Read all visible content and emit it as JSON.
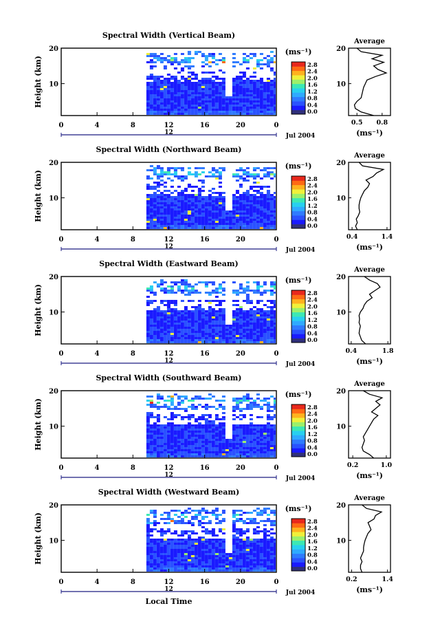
{
  "figure": {
    "bottom_xlabel": "Local Time",
    "date_label": "Jul 2004"
  },
  "colors": {
    "background": "#ffffff",
    "colormap": [
      "#30307a",
      "#1a1aff",
      "#2a52ff",
      "#2f7bff",
      "#2faaff",
      "#28d0ef",
      "#3ce8b4",
      "#9cf06a",
      "#f0f03a",
      "#ffb21e",
      "#ff6a14",
      "#e8281c"
    ]
  },
  "chart_data": [
    {
      "type": "heatmap",
      "title": "Spectral Width (Vertical Beam)",
      "ylabel": "Height (km)",
      "x_ticks": [
        "0",
        "4",
        "8",
        "12",
        "16",
        "20",
        "0"
      ],
      "x_secondary_label": "12",
      "y_ticks": [
        "20",
        "10"
      ],
      "xlim": [
        0,
        24
      ],
      "ylim": [
        1,
        20
      ],
      "data_start_hour": 9.5,
      "gap_hour": 18.6,
      "colorbar": {
        "unit": "(ms⁻¹)",
        "ticks": [
          "2.8",
          "2.4",
          "2.0",
          "1.6",
          "1.2",
          "0.8",
          "0.4",
          "0.0"
        ],
        "range": [
          0,
          3
        ]
      },
      "profile": {
        "title": "Average",
        "xlabel": "(ms⁻¹)",
        "x_ticks": [
          "0.5",
          "0.8"
        ],
        "xlim": [
          0.4,
          0.9
        ],
        "y_ticks": [
          "20",
          "10"
        ],
        "heights": [
          1,
          2,
          3,
          4,
          5,
          6,
          7,
          8,
          9,
          10,
          11,
          12,
          13,
          14,
          15,
          16,
          17,
          18,
          19,
          20
        ],
        "values": [
          0.7,
          0.55,
          0.48,
          0.47,
          0.5,
          0.55,
          0.56,
          0.57,
          0.58,
          0.6,
          0.62,
          0.72,
          0.85,
          0.75,
          0.7,
          0.82,
          0.68,
          0.8,
          0.55,
          0.5
        ]
      }
    },
    {
      "type": "heatmap",
      "title": "Spectral Width (Northward Beam)",
      "ylabel": "Height (km)",
      "x_ticks": [
        "0",
        "4",
        "8",
        "12",
        "16",
        "20",
        "0"
      ],
      "x_secondary_label": "12",
      "y_ticks": [
        "20",
        "10"
      ],
      "xlim": [
        0,
        24
      ],
      "ylim": [
        1,
        20
      ],
      "data_start_hour": 9.5,
      "gap_hour": 18.6,
      "colorbar": {
        "unit": "(ms⁻¹)",
        "ticks": [
          "2.8",
          "2.4",
          "2.0",
          "1.6",
          "1.2",
          "0.8",
          "0.4",
          "0.0"
        ],
        "range": [
          0,
          3
        ]
      },
      "profile": {
        "title": "Average",
        "xlabel": "(ms⁻¹)",
        "x_ticks": [
          "0.4",
          "1.4"
        ],
        "xlim": [
          0.3,
          1.5
        ],
        "y_ticks": [
          "20",
          "10"
        ],
        "heights": [
          1,
          2,
          3,
          4,
          5,
          6,
          7,
          8,
          9,
          10,
          11,
          12,
          13,
          14,
          15,
          16,
          17,
          18,
          19,
          20
        ],
        "values": [
          0.55,
          0.5,
          0.55,
          0.52,
          0.58,
          0.62,
          0.6,
          0.6,
          0.62,
          0.65,
          0.7,
          0.75,
          0.85,
          0.9,
          0.8,
          1.0,
          1.1,
          1.3,
          0.7,
          0.6
        ]
      }
    },
    {
      "type": "heatmap",
      "title": "Spectral Width (Eastward Beam)",
      "ylabel": "Height (km)",
      "x_ticks": [
        "0",
        "4",
        "8",
        "12",
        "16",
        "20",
        "0"
      ],
      "x_secondary_label": "12",
      "y_ticks": [
        "20",
        "10"
      ],
      "xlim": [
        0,
        24
      ],
      "ylim": [
        1,
        20
      ],
      "data_start_hour": 9.5,
      "gap_hour": 18.6,
      "colorbar": {
        "unit": "(ms⁻¹)",
        "ticks": [
          "2.8",
          "2.4",
          "2.0",
          "1.6",
          "1.2",
          "0.8",
          "0.4",
          "0.0"
        ],
        "range": [
          0,
          3
        ]
      },
      "profile": {
        "title": "Average",
        "xlabel": "(ms⁻¹)",
        "x_ticks": [
          "0.4",
          "1.8"
        ],
        "xlim": [
          0.3,
          1.9
        ],
        "y_ticks": [
          "20",
          "10"
        ],
        "heights": [
          1,
          2,
          3,
          4,
          5,
          6,
          7,
          8,
          9,
          10,
          11,
          12,
          13,
          14,
          15,
          16,
          17,
          18,
          19,
          20
        ],
        "values": [
          0.95,
          0.8,
          0.75,
          0.7,
          0.72,
          0.75,
          0.7,
          0.72,
          0.7,
          0.75,
          0.85,
          0.9,
          1.0,
          1.2,
          1.1,
          1.3,
          1.5,
          1.4,
          1.1,
          0.9
        ]
      }
    },
    {
      "type": "heatmap",
      "title": "Spectral Width (Southward Beam)",
      "ylabel": "Height (km)",
      "x_ticks": [
        "0",
        "4",
        "8",
        "12",
        "16",
        "20",
        "0"
      ],
      "x_secondary_label": "12",
      "y_ticks": [
        "20",
        "10"
      ],
      "xlim": [
        0,
        24
      ],
      "ylim": [
        1,
        20
      ],
      "data_start_hour": 9.5,
      "gap_hour": 18.6,
      "colorbar": {
        "unit": "(ms⁻¹)",
        "ticks": [
          "2.8",
          "2.4",
          "2.0",
          "1.6",
          "1.2",
          "0.8",
          "0.4",
          "0.0"
        ],
        "range": [
          0,
          3
        ]
      },
      "profile": {
        "title": "Average",
        "xlabel": "(ms⁻¹)",
        "x_ticks": [
          "0.2",
          "1.0"
        ],
        "xlim": [
          0.1,
          1.1
        ],
        "y_ticks": [
          "20",
          "10"
        ],
        "heights": [
          1,
          2,
          3,
          4,
          5,
          6,
          7,
          8,
          9,
          10,
          11,
          12,
          13,
          14,
          15,
          16,
          17,
          18,
          19,
          20
        ],
        "values": [
          0.7,
          0.6,
          0.45,
          0.42,
          0.45,
          0.48,
          0.45,
          0.5,
          0.55,
          0.6,
          0.65,
          0.7,
          0.8,
          0.65,
          0.75,
          0.85,
          0.75,
          0.9,
          0.6,
          0.45
        ]
      }
    },
    {
      "type": "heatmap",
      "title": "Spectral Width (Westward Beam)",
      "ylabel": "Height (km)",
      "x_ticks": [
        "0",
        "4",
        "8",
        "12",
        "16",
        "20",
        "0"
      ],
      "x_secondary_label": "12",
      "y_ticks": [
        "20",
        "10"
      ],
      "xlim": [
        0,
        24
      ],
      "ylim": [
        1,
        20
      ],
      "data_start_hour": 9.5,
      "gap_hour": 18.6,
      "colorbar": {
        "unit": "(ms⁻¹)",
        "ticks": [
          "2.8",
          "2.4",
          "2.0",
          "1.6",
          "1.2",
          "0.8",
          "0.4",
          "0.0"
        ],
        "range": [
          0,
          3
        ]
      },
      "profile": {
        "title": "Average",
        "xlabel": "(ms⁻¹)",
        "x_ticks": [
          "0.2",
          "1.4"
        ],
        "xlim": [
          0.1,
          1.5
        ],
        "y_ticks": [
          "20",
          "10"
        ],
        "heights": [
          1,
          2,
          3,
          4,
          5,
          6,
          7,
          8,
          9,
          10,
          11,
          12,
          13,
          14,
          15,
          16,
          17,
          18,
          19,
          20
        ],
        "values": [
          0.55,
          0.5,
          0.5,
          0.55,
          0.5,
          0.55,
          0.6,
          0.6,
          0.62,
          0.65,
          0.7,
          0.75,
          0.85,
          0.8,
          0.75,
          0.95,
          1.0,
          1.2,
          0.7,
          0.55
        ]
      }
    }
  ]
}
